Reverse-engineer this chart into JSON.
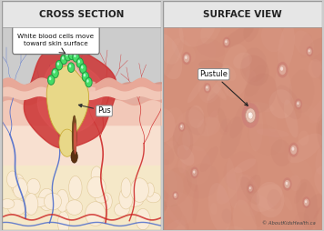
{
  "title_left": "CROSS SECTION",
  "title_right": "SURFACE VIEW",
  "title_fontsize": 7.5,
  "title_bg": "#e6e6e6",
  "border_color": "#999999",
  "wbc_label": "White blood cells move\ntoward skin surface",
  "pus_label": "Pus",
  "pustule_label": "Pustule",
  "copyright": "© AboutKidsHealth.ca",
  "bg_white": "#ffffff",
  "skin_surface_color": "#e8a898",
  "skin_dermis_color": "#f2c8b8",
  "skin_subdermal_color": "#f8e0d0",
  "skin_fat_color": "#f5e8c8",
  "inflamed_red": "#cc3333",
  "inflamed_mid": "#dd5555",
  "pus_color": "#e8d888",
  "pus_edge": "#c8a830",
  "wbc_green": "#44dd66",
  "wbc_edge": "#229944",
  "hair_dark": "#7a4a20",
  "hair_mid": "#9a6030",
  "vein_blue": "#4466cc",
  "vein_red": "#cc2222",
  "surface_skin_base": "#d4907a",
  "surface_skin_light": "#e8b0a0",
  "surface_skin_dark": "#c07868"
}
